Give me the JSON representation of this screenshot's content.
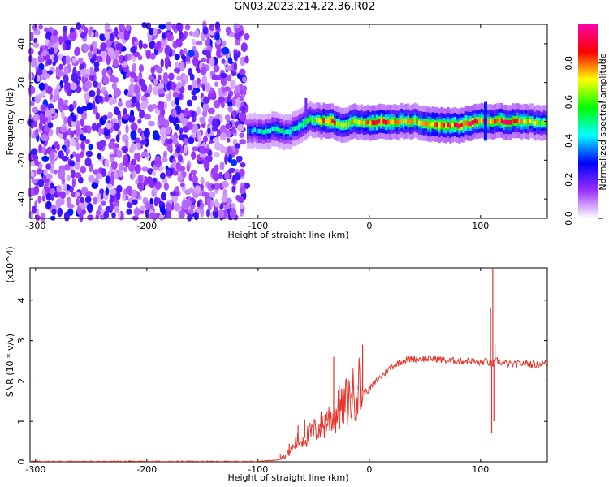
{
  "title": "GN03.2023.214.22.36.R02",
  "chart_data": [
    {
      "type": "heatmap",
      "xlabel": "Height of straight line (km)",
      "ylabel": "Frequency (Hz)",
      "xlim": [
        -305,
        160
      ],
      "ylim": [
        -50,
        50
      ],
      "xticks": [
        -300,
        -200,
        -100,
        0,
        100
      ],
      "yticks": [
        -40,
        -20,
        0,
        20,
        40
      ],
      "colorbar": {
        "label": "Normalized spectral amplitude",
        "range": [
          0,
          1
        ],
        "ticks": [
          0.0,
          0.2,
          0.4,
          0.6,
          0.8
        ],
        "colors": [
          "#ffffff",
          "#9b30ff",
          "#0000ff",
          "#00ffff",
          "#00ff00",
          "#ffff00",
          "#ff0000",
          "#ff00aa"
        ]
      },
      "noise_region": {
        "x": [
          -305,
          -110
        ],
        "y": [
          -50,
          50
        ],
        "level": 0.2
      },
      "ridge": [
        {
          "x": -110,
          "f": -5,
          "a": 0.35
        },
        {
          "x": -95,
          "f": -5,
          "a": 0.45
        },
        {
          "x": -85,
          "f": -4,
          "a": 0.5
        },
        {
          "x": -75,
          "f": -6,
          "a": 0.45
        },
        {
          "x": -65,
          "f": -3,
          "a": 0.5
        },
        {
          "x": -55,
          "f": 1,
          "a": 0.55
        },
        {
          "x": -45,
          "f": 0,
          "a": 0.7
        },
        {
          "x": -35,
          "f": 0,
          "a": 0.85
        },
        {
          "x": -25,
          "f": -2,
          "a": 0.6
        },
        {
          "x": -15,
          "f": 0,
          "a": 0.75
        },
        {
          "x": -5,
          "f": -1,
          "a": 0.7
        },
        {
          "x": 5,
          "f": 0,
          "a": 0.85
        },
        {
          "x": 20,
          "f": 0,
          "a": 0.75
        },
        {
          "x": 40,
          "f": 0,
          "a": 0.7
        },
        {
          "x": 60,
          "f": -2,
          "a": 0.8
        },
        {
          "x": 80,
          "f": -2,
          "a": 0.85
        },
        {
          "x": 95,
          "f": 0,
          "a": 0.9
        },
        {
          "x": 105,
          "f": 0,
          "a": 0.7
        },
        {
          "x": 120,
          "f": 0,
          "a": 0.85
        },
        {
          "x": 140,
          "f": 0,
          "a": 0.75
        },
        {
          "x": 160,
          "f": -1,
          "a": 0.6
        }
      ]
    },
    {
      "type": "line",
      "xlabel": "Height of straight line (km)",
      "ylabel": "SNR (10 * v/v)",
      "yscale_label": "(x10^4)",
      "xlim": [
        -305,
        160
      ],
      "ylim": [
        0,
        4.8
      ],
      "xticks": [
        -300,
        -200,
        -100,
        0,
        100
      ],
      "yticks": [
        0,
        1,
        2,
        3,
        4
      ],
      "color": "#e8332a",
      "series": [
        {
          "x": [
            -305,
            -200,
            -100,
            -85,
            -75,
            -70,
            -65,
            -60,
            -55,
            -50,
            -45,
            -40,
            -35,
            -30,
            -25,
            -20,
            -15,
            -10,
            -5,
            0,
            10,
            20,
            30,
            40,
            50,
            60,
            70,
            80,
            90,
            100,
            105,
            110,
            115,
            120,
            130,
            140,
            150,
            160
          ],
          "y": [
            0.01,
            0.01,
            0.01,
            0.04,
            0.15,
            0.3,
            0.5,
            0.55,
            0.65,
            0.75,
            0.85,
            0.95,
            1.1,
            1.2,
            1.3,
            1.5,
            1.6,
            1.9,
            1.7,
            1.8,
            2.1,
            2.35,
            2.5,
            2.55,
            2.55,
            2.55,
            2.5,
            2.5,
            2.5,
            2.45,
            2.5,
            2.4,
            2.5,
            2.45,
            2.4,
            2.45,
            2.4,
            2.45
          ]
        }
      ],
      "spikes": [
        {
          "x": -80,
          "y": 0.2
        },
        {
          "x": -72,
          "y": 0.45
        },
        {
          "x": -64,
          "y": 0.9
        },
        {
          "x": -58,
          "y": 1.05
        },
        {
          "x": -50,
          "y": 0.85
        },
        {
          "x": -44,
          "y": 0.95
        },
        {
          "x": -38,
          "y": 1.25
        },
        {
          "x": -32,
          "y": 2.6
        },
        {
          "x": -27,
          "y": 1.9
        },
        {
          "x": -22,
          "y": 1.4
        },
        {
          "x": -16,
          "y": 1.7
        },
        {
          "x": -10,
          "y": 1.8
        },
        {
          "x": -6,
          "y": 2.9
        },
        {
          "x": 109,
          "y": 3.8
        },
        {
          "x": 110,
          "y": 0.7
        },
        {
          "x": 111,
          "y": 4.8
        },
        {
          "x": 112,
          "y": 1.0
        },
        {
          "x": 113,
          "y": 2.9
        }
      ]
    }
  ]
}
